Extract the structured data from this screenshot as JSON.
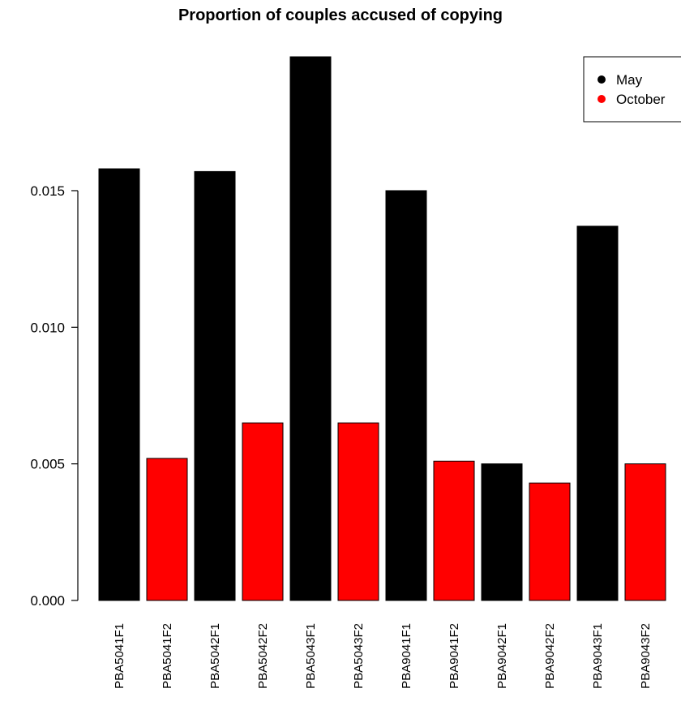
{
  "chart_data": {
    "type": "bar",
    "title": "Proportion of couples accused of copying",
    "xlabel": "",
    "ylabel": "",
    "ylim": [
      0,
      0.02
    ],
    "y_ticks": [
      0.0,
      0.005,
      0.01,
      0.015
    ],
    "y_tick_labels": [
      "0.000",
      "0.005",
      "0.010",
      "0.015"
    ],
    "categories": [
      "PBA5041F1",
      "PBA5041F2",
      "PBA5042F1",
      "PBA5042F2",
      "PBA5043F1",
      "PBA5043F2",
      "PBA9041F1",
      "PBA9041F2",
      "PBA9042F1",
      "PBA9042F2",
      "PBA9043F1",
      "PBA9043F2"
    ],
    "values": [
      0.0158,
      0.0052,
      0.0157,
      0.0065,
      0.0199,
      0.0065,
      0.015,
      0.0051,
      0.005,
      0.0043,
      0.0137,
      0.005
    ],
    "bar_series": [
      "May",
      "October",
      "May",
      "October",
      "May",
      "October",
      "May",
      "October",
      "May",
      "October",
      "May",
      "October"
    ],
    "legend": {
      "position": "top-right",
      "entries": [
        {
          "label": "May",
          "color": "#000000"
        },
        {
          "label": "October",
          "color": "#ff0000"
        }
      ]
    },
    "grid": false
  }
}
